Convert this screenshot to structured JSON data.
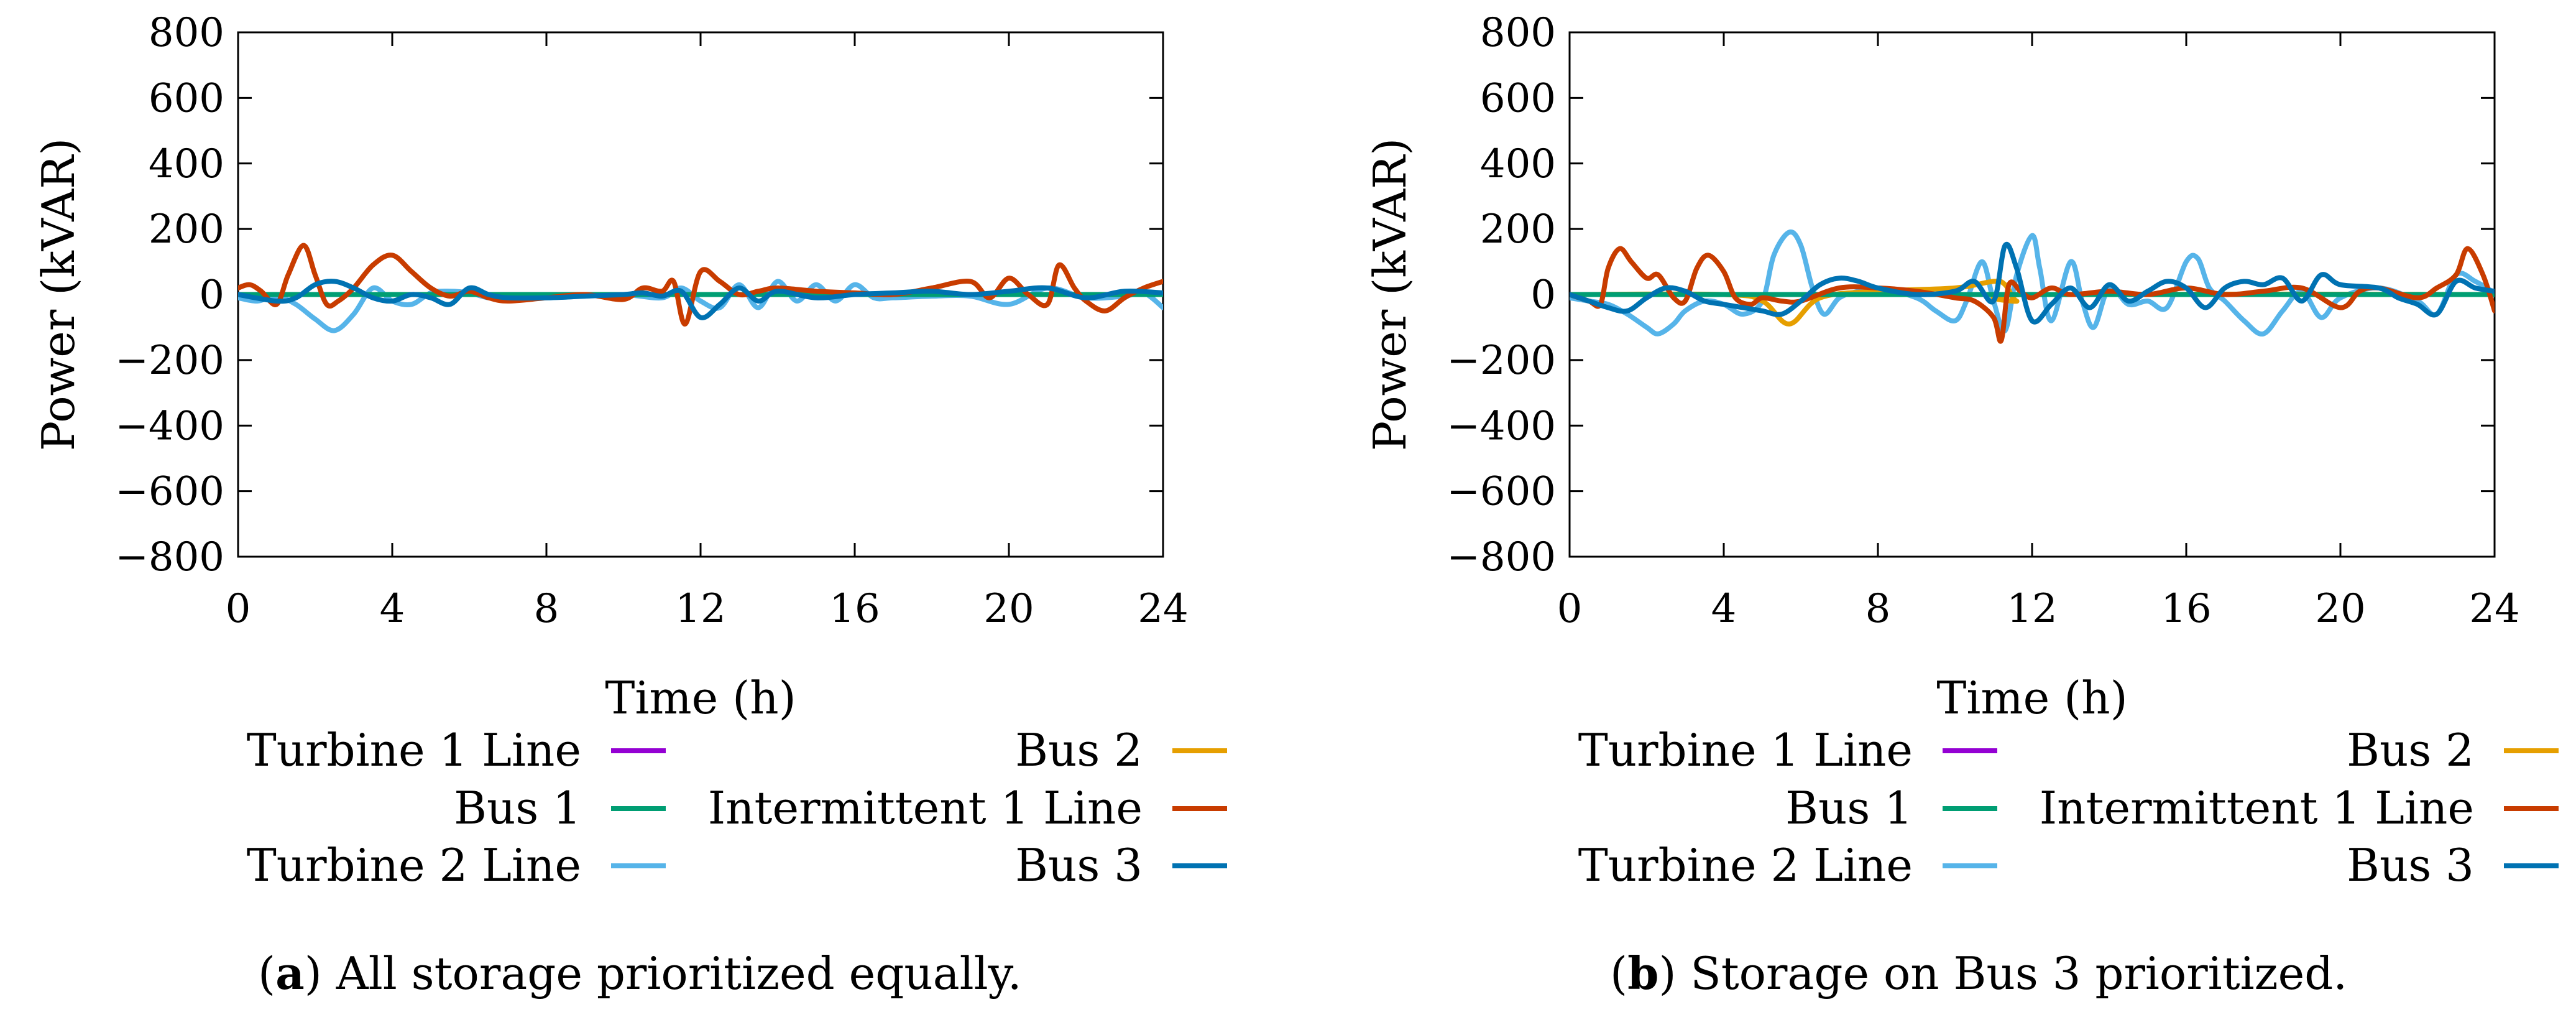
{
  "colors": {
    "turbine1": "#9400d3",
    "bus1": "#009e73",
    "turbine2": "#56b4e9",
    "bus2": "#e69f00",
    "intermittent1": "#c83c00",
    "bus3": "#0072b2"
  },
  "chart_data": [
    {
      "type": "line",
      "caption_label": "a",
      "caption_text": ") All storage prioritized equally.",
      "caption_open": "(",
      "xlabel": "Time (h)",
      "ylabel": "Power (kVAR)",
      "xlim": [
        0,
        24
      ],
      "ylim": [
        -800,
        800
      ],
      "xticks": [
        0,
        4,
        8,
        12,
        16,
        20,
        24
      ],
      "xtick_labels": [
        "0",
        "4",
        "8",
        "12",
        "16",
        "20",
        "24"
      ],
      "yticks": [
        800,
        600,
        400,
        200,
        0,
        -200,
        -400,
        -600,
        -800
      ],
      "ytick_labels": [
        "800",
        "600",
        "400",
        "200",
        "0",
        "−200",
        "−400",
        "−600",
        "−800"
      ],
      "legend": [
        "Turbine 1 Line",
        "Bus 1",
        "Turbine 2 Line",
        "Bus 2",
        "Intermittent 1 Line",
        "Bus 3"
      ],
      "series": [
        {
          "name": "Turbine 1 Line",
          "color_key": "turbine1",
          "x": [
            0,
            24
          ],
          "y": [
            0,
            0
          ]
        },
        {
          "name": "Bus 1",
          "color_key": "bus1",
          "x": [
            0,
            24
          ],
          "y": [
            0,
            0
          ]
        },
        {
          "name": "Bus 2",
          "color_key": "bus2",
          "x": [
            0,
            24
          ],
          "y": [
            0,
            0
          ]
        },
        {
          "name": "Turbine 2 Line",
          "color_key": "turbine2",
          "x": [
            0,
            0.5,
            1,
            1.5,
            2,
            2.5,
            3,
            3.5,
            4,
            4.5,
            5,
            5.5,
            6,
            6.5,
            7,
            8,
            9,
            10,
            11,
            11.5,
            12,
            12.5,
            13,
            13.5,
            14,
            14.5,
            15,
            15.5,
            16,
            16.5,
            17,
            18,
            19,
            20,
            21,
            22,
            23,
            23.5,
            24
          ],
          "y": [
            -10,
            -20,
            -5,
            -30,
            -75,
            -110,
            -60,
            20,
            -20,
            -30,
            5,
            10,
            5,
            -10,
            -10,
            -10,
            -5,
            0,
            -10,
            20,
            -20,
            -40,
            30,
            -40,
            40,
            -20,
            30,
            -20,
            30,
            -10,
            -10,
            -5,
            -5,
            -30,
            20,
            -10,
            -5,
            5,
            -40
          ]
        },
        {
          "name": "Intermittent 1 Line",
          "color_key": "intermittent1",
          "x": [
            0,
            0.3,
            0.6,
            1,
            1.3,
            1.7,
            2,
            2.3,
            2.6,
            3,
            3.5,
            4,
            4.5,
            5,
            5.5,
            6,
            6.5,
            7,
            8,
            9,
            10,
            10.5,
            11,
            11.3,
            11.6,
            12,
            12.5,
            13,
            13.5,
            14,
            15,
            16,
            17,
            18,
            19,
            19.5,
            20,
            20.5,
            21,
            21.3,
            21.7,
            22,
            22.5,
            23,
            23.5,
            24
          ],
          "y": [
            20,
            30,
            10,
            -30,
            60,
            150,
            60,
            -30,
            -20,
            20,
            90,
            120,
            70,
            20,
            -5,
            10,
            -10,
            -20,
            -10,
            0,
            -15,
            20,
            10,
            40,
            -90,
            70,
            40,
            0,
            10,
            20,
            10,
            5,
            0,
            20,
            40,
            -10,
            50,
            0,
            -30,
            90,
            20,
            -20,
            -50,
            -10,
            20,
            40
          ]
        },
        {
          "name": "Bus 3",
          "color_key": "bus3",
          "x": [
            0,
            1,
            1.5,
            2,
            2.5,
            3,
            3.5,
            4,
            4.5,
            5,
            5.5,
            6,
            6.5,
            7,
            8,
            9,
            10,
            10.5,
            11,
            11.5,
            12,
            12.5,
            13,
            13.5,
            14,
            15,
            16,
            17,
            18,
            19,
            20,
            21,
            22,
            23,
            24
          ],
          "y": [
            0,
            -20,
            -10,
            30,
            40,
            20,
            -10,
            -20,
            0,
            -10,
            -30,
            20,
            0,
            -10,
            -10,
            -5,
            0,
            5,
            -5,
            10,
            -70,
            -30,
            20,
            -20,
            10,
            -10,
            0,
            5,
            10,
            0,
            10,
            20,
            -10,
            10,
            5
          ]
        }
      ]
    },
    {
      "type": "line",
      "caption_label": "b",
      "caption_text": ") Storage on Bus 3 prioritized.",
      "caption_open": "(",
      "xlabel": "Time (h)",
      "ylabel": "Power (kVAR)",
      "xlim": [
        0,
        24
      ],
      "ylim": [
        -800,
        800
      ],
      "xticks": [
        0,
        4,
        8,
        12,
        16,
        20,
        24
      ],
      "xtick_labels": [
        "0",
        "4",
        "8",
        "12",
        "16",
        "20",
        "24"
      ],
      "yticks": [
        800,
        600,
        400,
        200,
        0,
        -200,
        -400,
        -600,
        -800
      ],
      "ytick_labels": [
        "800",
        "600",
        "400",
        "200",
        "0",
        "−200",
        "−400",
        "−600",
        "−800"
      ],
      "legend": [
        "Turbine 1 Line",
        "Bus 1",
        "Turbine 2 Line",
        "Bus 2",
        "Intermittent 1 Line",
        "Bus 3"
      ],
      "series": [
        {
          "name": "Turbine 1 Line",
          "color_key": "turbine1",
          "x": [
            0,
            24
          ],
          "y": [
            0,
            0
          ]
        },
        {
          "name": "Bus 1",
          "color_key": "bus1",
          "x": [
            0,
            24
          ],
          "y": [
            0,
            0
          ]
        },
        {
          "name": "Bus 2",
          "color_key": "bus2",
          "x": [
            0,
            4,
            5,
            5.7,
            6.5,
            8,
            10,
            11,
            11.3,
            11.6,
            12,
            24
          ],
          "y": [
            0,
            0,
            -20,
            -90,
            -10,
            10,
            20,
            40,
            30,
            -20,
            0,
            0
          ]
        },
        {
          "name": "Turbine 2 Line",
          "color_key": "turbine2",
          "x": [
            0,
            0.5,
            1,
            1.5,
            2,
            2.3,
            2.7,
            3,
            3.5,
            4,
            4.5,
            5,
            5.3,
            5.7,
            6,
            6.3,
            6.6,
            7,
            7.5,
            8,
            9,
            9.5,
            10,
            10.3,
            10.7,
            11,
            11.3,
            11.6,
            12,
            12.2,
            12.5,
            13,
            13.3,
            13.6,
            14,
            14.5,
            15,
            15.5,
            16,
            16.3,
            16.6,
            17,
            17.5,
            18,
            18.5,
            19,
            19.5,
            20,
            21,
            22,
            22.5,
            23,
            23.5,
            24
          ],
          "y": [
            -10,
            -20,
            -30,
            -60,
            -100,
            -120,
            -90,
            -50,
            -20,
            -30,
            -60,
            -20,
            120,
            190,
            150,
            20,
            -60,
            -10,
            10,
            20,
            -10,
            -50,
            -80,
            -20,
            100,
            -20,
            -110,
            60,
            180,
            80,
            -80,
            100,
            -20,
            -100,
            20,
            -30,
            -20,
            -40,
            100,
            110,
            20,
            -20,
            -80,
            -120,
            -50,
            10,
            -70,
            -10,
            20,
            -20,
            -60,
            60,
            40,
            5
          ]
        },
        {
          "name": "Intermittent 1 Line",
          "color_key": "intermittent1",
          "x": [
            0,
            0.5,
            0.8,
            1,
            1.3,
            1.6,
            2,
            2.3,
            2.7,
            3,
            3.3,
            3.6,
            4,
            4.3,
            4.7,
            5,
            5.5,
            6,
            7,
            8,
            9,
            10,
            10.5,
            11,
            11.2,
            11.4,
            11.7,
            12,
            12.5,
            13,
            14,
            15,
            16,
            17,
            18,
            19,
            20,
            20.5,
            21,
            22,
            22.5,
            23,
            23.3,
            23.7,
            24
          ],
          "y": [
            0,
            -20,
            -30,
            80,
            140,
            100,
            50,
            60,
            -10,
            -20,
            80,
            120,
            70,
            -10,
            -30,
            -10,
            -20,
            -20,
            20,
            20,
            10,
            -10,
            -20,
            -70,
            -140,
            30,
            10,
            -10,
            20,
            0,
            10,
            0,
            20,
            0,
            10,
            20,
            -40,
            10,
            20,
            -10,
            20,
            60,
            140,
            60,
            -50
          ]
        },
        {
          "name": "Bus 3",
          "color_key": "bus3",
          "x": [
            0,
            0.5,
            1,
            1.5,
            2,
            2.5,
            3,
            3.5,
            4,
            4.5,
            5,
            5.5,
            6,
            6.5,
            7,
            7.5,
            8,
            9,
            10,
            10.5,
            11,
            11.3,
            11.6,
            12,
            12.5,
            13,
            13.5,
            14,
            14.5,
            15,
            15.5,
            16,
            16.5,
            17,
            17.5,
            18,
            18.5,
            19,
            19.5,
            20,
            21,
            21.5,
            22,
            22.5,
            23,
            23.5,
            24
          ],
          "y": [
            0,
            -20,
            -40,
            -50,
            -10,
            20,
            10,
            -20,
            -30,
            -40,
            -50,
            -60,
            -20,
            30,
            50,
            40,
            20,
            0,
            10,
            40,
            -20,
            150,
            80,
            -80,
            -30,
            20,
            -40,
            30,
            -20,
            10,
            40,
            20,
            -40,
            20,
            40,
            30,
            50,
            -20,
            60,
            30,
            20,
            -10,
            -30,
            -60,
            40,
            20,
            10
          ]
        }
      ]
    }
  ]
}
